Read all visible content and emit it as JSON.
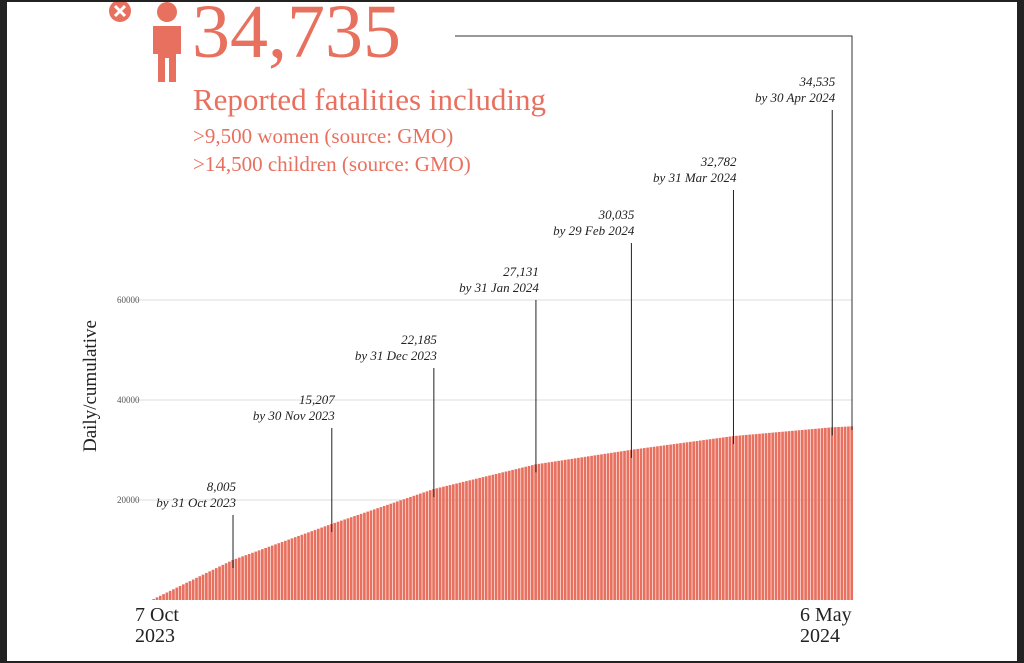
{
  "header": {
    "total": "34,735",
    "subtitle": "Reported fatalities including",
    "notes": [
      ">9,500 women (source: GMO)",
      ">14,500 children (source: GMO)"
    ],
    "icons": [
      "close-circle-icon",
      "person-icon"
    ]
  },
  "colors": {
    "accent": "#e8705f",
    "bar": "#e8705f",
    "grid": "#dddddd",
    "text": "#222222"
  },
  "x_axis": {
    "start": {
      "line1": "7 Oct",
      "line2": "2023"
    },
    "end": {
      "line1": "6 May",
      "line2": "2024"
    }
  },
  "chart_data": {
    "type": "bar",
    "title": "",
    "ylabel": "Daily/cumulative",
    "ylim": [
      0,
      70000
    ],
    "yticks": [
      "20000",
      "40000",
      "60000"
    ],
    "x_range": [
      "2023-10-07",
      "2024-05-06"
    ],
    "grid": true,
    "series": [
      {
        "values_key_dates": [
          "2023-10-07",
          "2023-10-31",
          "2023-11-30",
          "2023-12-31",
          "2024-01-31",
          "2024-02-29",
          "2024-03-31",
          "2024-04-30",
          "2024-05-06"
        ],
        "values": [
          200,
          8005,
          15207,
          22185,
          27131,
          30035,
          32782,
          34535,
          34735
        ]
      }
    ],
    "annotations": [
      {
        "value": "8,005",
        "label": "by 31 Oct 2023",
        "date": "2023-10-31",
        "y": 8005
      },
      {
        "value": "15,207",
        "label": "by 30 Nov 2023",
        "date": "2023-11-30",
        "y": 15207
      },
      {
        "value": "22,185",
        "label": "by 31 Dec 2023",
        "date": "2023-12-31",
        "y": 22185
      },
      {
        "value": "27,131",
        "label": "by 31 Jan 2024",
        "date": "2024-01-31",
        "y": 27131
      },
      {
        "value": "30,035",
        "label": "by 29 Feb 2024",
        "date": "2024-02-29",
        "y": 30035
      },
      {
        "value": "32,782",
        "label": "by 31 Mar 2024",
        "date": "2024-03-31",
        "y": 32782
      },
      {
        "value": "34,535",
        "label": "by 30 Apr 2024",
        "date": "2024-04-30",
        "y": 34535
      }
    ]
  }
}
